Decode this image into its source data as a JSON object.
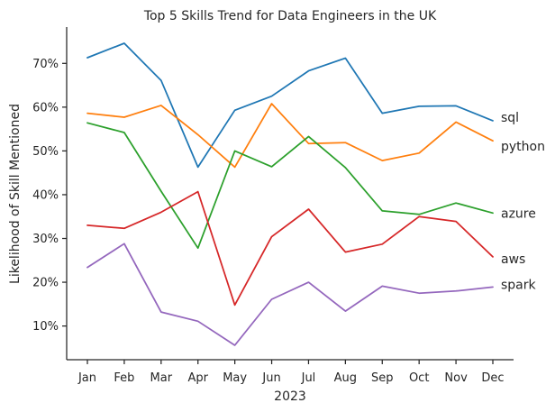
{
  "chart_data": {
    "type": "line",
    "title": "Top 5 Skills Trend for Data Engineers in the UK",
    "xlabel": "2023",
    "ylabel": "Likelihood of Skill Mentioned",
    "categories": [
      "Jan",
      "Feb",
      "Mar",
      "Apr",
      "May",
      "Jun",
      "Jul",
      "Aug",
      "Sep",
      "Oct",
      "Nov",
      "Dec"
    ],
    "ylim": [
      2.3,
      78.3
    ],
    "yticks": [
      10,
      20,
      30,
      40,
      50,
      60,
      70
    ],
    "ytick_labels": [
      "10%",
      "20%",
      "30%",
      "40%",
      "50%",
      "60%",
      "70%"
    ],
    "grid": false,
    "legend": "inline labels at line ends",
    "series": [
      {
        "name": "sql",
        "color": "#1f77b4",
        "values": [
          71.3,
          74.6,
          66.1,
          46.3,
          59.3,
          62.5,
          68.3,
          71.2,
          58.6,
          60.2,
          60.3,
          56.9
        ]
      },
      {
        "name": "python",
        "color": "#ff7f0e",
        "values": [
          58.6,
          57.7,
          60.4,
          53.7,
          46.3,
          60.8,
          51.7,
          51.9,
          47.8,
          49.5,
          56.6,
          52.3
        ]
      },
      {
        "name": "azure",
        "color": "#2ca02c",
        "values": [
          56.4,
          54.2,
          40.8,
          27.8,
          50.0,
          46.4,
          53.3,
          46.2,
          36.3,
          35.5,
          38.1,
          35.8
        ]
      },
      {
        "name": "aws",
        "color": "#d62728",
        "values": [
          33.0,
          32.3,
          36.0,
          40.7,
          14.8,
          30.4,
          36.7,
          26.9,
          28.7,
          35.0,
          33.9,
          25.8
        ]
      },
      {
        "name": "spark",
        "color": "#9467bd",
        "values": [
          23.4,
          28.8,
          13.2,
          11.1,
          5.6,
          16.1,
          20.0,
          13.4,
          19.1,
          17.5,
          18.0,
          18.9
        ]
      }
    ]
  }
}
